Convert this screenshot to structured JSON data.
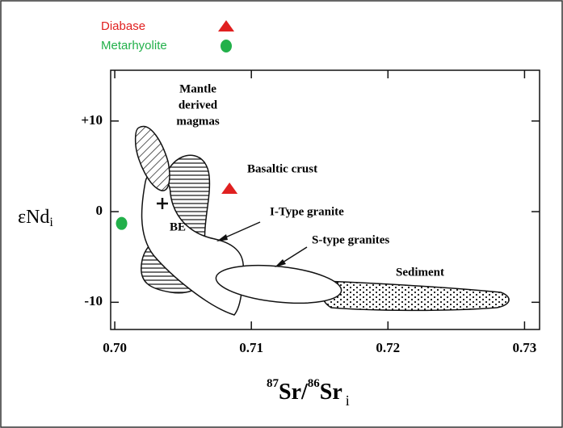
{
  "chart_data": {
    "type": "scatter",
    "series": [
      {
        "name": "Diabase",
        "color": "#e02020",
        "marker": "triangle",
        "x": [
          0.7084
        ],
        "y": [
          2.5
        ]
      },
      {
        "name": "Metarhyolite",
        "color": "#22b04a",
        "marker": "circle",
        "x": [
          0.7005
        ],
        "y": [
          -1.3
        ]
      }
    ],
    "xlim": [
      0.6997,
      0.7311
    ],
    "ylim": [
      -13,
      15.6
    ],
    "xticks": [
      {
        "value": 0.7,
        "label": "0.70"
      },
      0.71,
      0.72,
      0.73
    ],
    "yticks": [
      {
        "value": 10,
        "label": "+10"
      },
      0,
      -10
    ],
    "ylabel": "εNd",
    "ylabel_sub": "i",
    "xlabel_parts": [
      "87",
      "Sr/",
      "86",
      "Sr",
      "i"
    ],
    "annotations": {
      "mantle": [
        "Mantle",
        "derived",
        "magmas"
      ],
      "basaltic": "Basaltic crust",
      "itype": "I-Type granite",
      "stype": "S-type granites",
      "sediment": "Sediment",
      "be": "BE"
    },
    "legend": "top-left"
  }
}
